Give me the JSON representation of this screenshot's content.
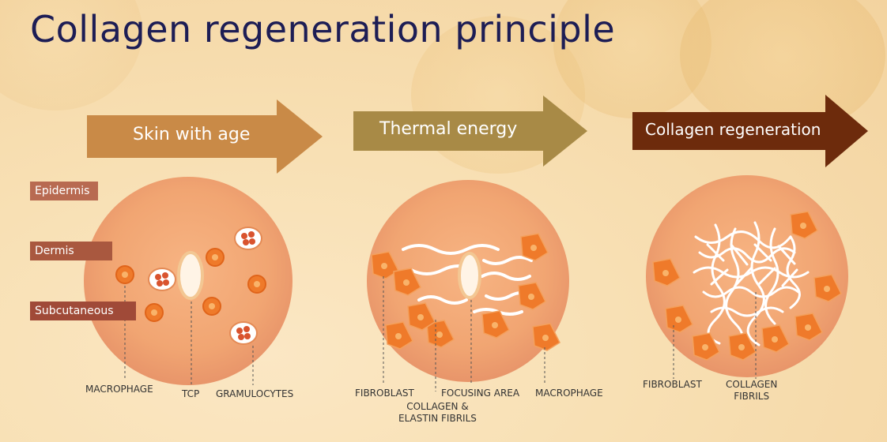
{
  "title": "Collagen regeneration principle",
  "steps": [
    {
      "label": "Skin with age",
      "color": "#c98a47"
    },
    {
      "label": "Thermal energy",
      "color": "#a88a46"
    },
    {
      "label": "Collagen regeneration",
      "color": "#6d2b0c"
    }
  ],
  "layers": [
    {
      "label": "Epidermis"
    },
    {
      "label": "Dermis"
    },
    {
      "label": "Subcutaneous"
    }
  ],
  "circle1": {
    "macrophage": "MACROPHAGE",
    "tcp": "TCP",
    "granulocytes": "GRAMULOCYTES"
  },
  "circle2": {
    "fibroblast": "FIBROBLAST",
    "collagen_elastin": "COLLAGEN &\nELASTIN FIBRILS",
    "focusing_area": "FOCUSING AREA",
    "macrophage": "MACROPHAGE"
  },
  "circle3": {
    "fibroblast": "FIBROBLAST",
    "collagen_fibrils": "COLLAGEN\nFIBRILS"
  }
}
